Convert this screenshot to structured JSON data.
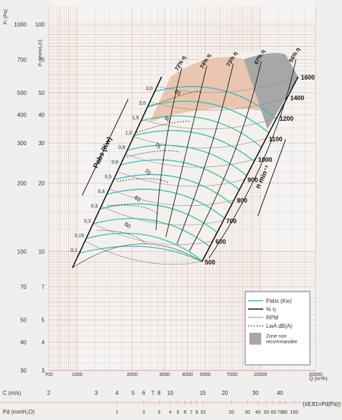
{
  "chart_data": {
    "type": "line",
    "title": "",
    "x_axis": {
      "label": "Q (m³/h)",
      "scale": "log",
      "range": [
        700,
        20000
      ],
      "ticks": [
        700,
        1000,
        2000,
        3000,
        4000,
        5000,
        7000,
        10000,
        20000
      ],
      "tick_labels": [
        "700",
        "1000",
        "2000",
        "3000",
        "4000",
        "5000",
        "7000",
        "10000",
        "20000"
      ]
    },
    "y_axis_pa": {
      "label": "Pₜ (Pa)",
      "scale": "log",
      "range": [
        30,
        1200
      ],
      "ticks": [
        30,
        40,
        50,
        70,
        100,
        200,
        300,
        400,
        500,
        700,
        1000
      ],
      "tick_labels": [
        "30",
        "40",
        "50",
        "70",
        "100",
        "200",
        "300",
        "400",
        "500",
        "700",
        "1000"
      ]
    },
    "y_axis_mmh2o": {
      "label": "Pₜ (mmH₂O)",
      "ticks": [
        3,
        4,
        5,
        7,
        10,
        20,
        30,
        40,
        50,
        70,
        100
      ],
      "tick_labels": [
        "3",
        "4",
        "5",
        "7",
        "10",
        "20",
        "30",
        "40",
        "50",
        "70",
        "100"
      ]
    },
    "velocity_axis": {
      "label": "C (m/s)",
      "values": [
        2,
        3,
        4,
        5,
        6,
        7,
        8,
        10,
        15,
        20,
        30,
        40
      ],
      "q_positions": [
        700,
        1270,
        1650,
        2020,
        2310,
        2590,
        2800,
        3220,
        4850,
        6400,
        9400,
        12800
      ]
    },
    "pd_axis": {
      "label": "Pd (mmH₂O)",
      "conversion_note": "(x9,81=Pd(Pa))",
      "values": [
        1,
        2,
        3,
        4,
        5,
        6,
        7,
        8,
        10,
        20,
        30,
        40,
        50,
        60,
        70,
        80,
        100
      ],
      "q_positions": [
        1650,
        2310,
        2800,
        3220,
        3550,
        3880,
        4200,
        4500,
        4850,
        6950,
        8500,
        9700,
        10800,
        11800,
        12800,
        13600,
        15300
      ]
    },
    "fan_curve_region": {
      "pabs_axis_label": "Pabs (Kw)",
      "rpm_axis_label": "n min⁻¹",
      "pabs_values": [
        0.1,
        0.15,
        0.2,
        0.3,
        0.4,
        0.5,
        0.6,
        0.8,
        1.0,
        1.5,
        2.0,
        3.0
      ],
      "pabs_labels": [
        "0,1",
        "0,15",
        "0,2",
        "0,3",
        "0,4",
        "0,5",
        "0,6",
        "0,8",
        "1,0",
        "1,5",
        "2,0",
        "3,0"
      ],
      "rpm_values": [
        500,
        600,
        700,
        800,
        900,
        1000,
        1100,
        1200,
        1400,
        1600
      ],
      "efficiency_labels": [
        "56% η",
        "67% η",
        "73% η",
        "74% η",
        "72% η"
      ],
      "lwa_db_values": [
        60,
        65,
        70,
        75,
        80,
        85
      ],
      "lwa_labels": [
        "60",
        "65",
        "70",
        "75",
        "80",
        "85"
      ]
    },
    "legend": {
      "placement": "bottom-right",
      "entries": [
        {
          "label": "Pabs (Kw)",
          "style": "line",
          "color": "#2fbfb3"
        },
        {
          "label": "% η",
          "style": "line",
          "color": "#111111"
        },
        {
          "label": "RPM",
          "style": "line",
          "color": "#8a8a8a"
        },
        {
          "label": "LwA dB(A)",
          "style": "dashed",
          "color": "#222222"
        },
        {
          "label": "Zone non recommandée",
          "style": "swatch",
          "color": "#a7a7a7"
        }
      ]
    },
    "grid": true,
    "colors": {
      "grid": "#e3b6a5",
      "pabs_curve": "#2fbfb3",
      "not_recommended_zone": "#a7a7a7",
      "high_efficiency_band": "#e8bda6",
      "page": "#efefed"
    }
  }
}
